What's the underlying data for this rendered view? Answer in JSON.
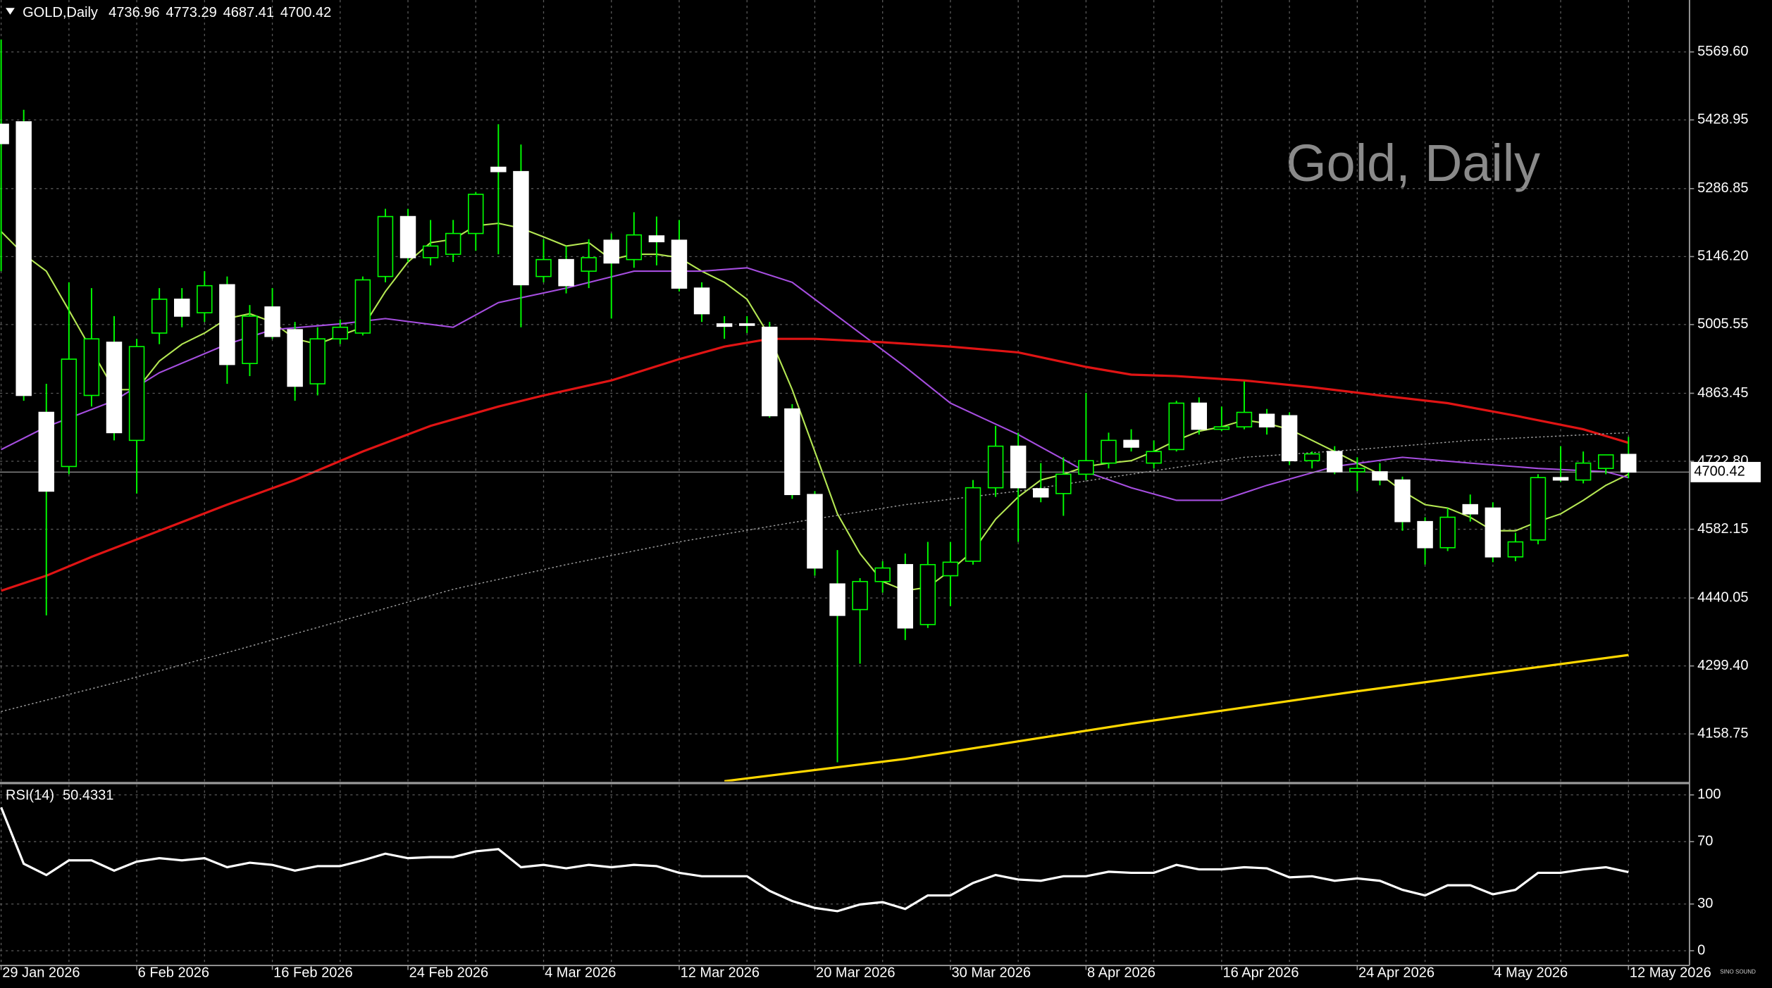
{
  "chart_data": {
    "type": "candlestick",
    "symbol": "GOLD,Daily",
    "watermark": "Gold, Daily",
    "logo": "SINO SOUND",
    "categories": [
      "29 Jan 2026",
      null,
      null,
      null,
      null,
      null,
      "6 Feb 2026",
      null,
      null,
      null,
      null,
      null,
      "16 Feb 2026",
      null,
      null,
      null,
      null,
      null,
      "24 Feb 2026",
      null,
      null,
      null,
      null,
      null,
      "4 Mar 2026",
      null,
      null,
      null,
      null,
      null,
      "12 Mar 2026",
      null,
      null,
      null,
      null,
      null,
      "20 Mar 2026",
      null,
      null,
      null,
      null,
      null,
      "30 Mar 2026",
      null,
      null,
      null,
      null,
      null,
      "8 Apr 2026",
      null,
      null,
      null,
      null,
      null,
      "16 Apr 2026",
      null,
      null,
      null,
      null,
      null,
      "24 Apr 2026",
      null,
      null,
      null,
      null,
      null,
      "4 May 2026",
      null,
      null,
      null,
      null,
      null,
      "12 May 2026"
    ],
    "ohlc": [
      [
        5420,
        5595,
        5116,
        5380
      ],
      [
        5425,
        5450,
        4848,
        4859
      ],
      [
        4824,
        4883,
        4404,
        4661
      ],
      [
        4712,
        5093,
        4696,
        4934
      ],
      [
        4859,
        5081,
        4836,
        4976
      ],
      [
        4969,
        5023,
        4766,
        4782
      ],
      [
        4766,
        4976,
        4656,
        4960
      ],
      [
        4988,
        5081,
        4965,
        5058
      ],
      [
        5058,
        5081,
        5000,
        5023
      ],
      [
        5030,
        5116,
        5011,
        5086
      ],
      [
        5088,
        5105,
        4883,
        4923
      ],
      [
        4925,
        5046,
        4899,
        5023
      ],
      [
        5042,
        5081,
        4976,
        4981
      ],
      [
        4995,
        5011,
        4848,
        4878
      ],
      [
        4883,
        5000,
        4859,
        4976
      ],
      [
        4976,
        5016,
        4965,
        5000
      ],
      [
        4988,
        5105,
        4983,
        5098
      ],
      [
        5105,
        5245,
        5093,
        5229
      ],
      [
        5229,
        5245,
        5135,
        5144
      ],
      [
        5144,
        5222,
        5128,
        5168
      ],
      [
        5151,
        5222,
        5135,
        5194
      ],
      [
        5194,
        5280,
        5158,
        5275
      ],
      [
        5331,
        5420,
        5151,
        5322
      ],
      [
        5322,
        5378,
        5000,
        5088
      ],
      [
        5105,
        5182,
        5093,
        5140
      ],
      [
        5140,
        5168,
        5070,
        5086
      ],
      [
        5116,
        5182,
        5081,
        5144
      ],
      [
        5180,
        5194,
        5018,
        5133
      ],
      [
        5140,
        5238,
        5123,
        5191
      ],
      [
        5189,
        5229,
        5128,
        5177
      ],
      [
        5180,
        5222,
        5074,
        5081
      ],
      [
        5081,
        5093,
        5011,
        5028
      ],
      [
        5007,
        5023,
        4976,
        5002
      ],
      [
        5007,
        5023,
        4988,
        5004
      ],
      [
        5000,
        5011,
        4813,
        4817
      ],
      [
        4831,
        4841,
        4645,
        4654
      ],
      [
        4654,
        4661,
        4486,
        4502
      ],
      [
        4469,
        4539,
        4100,
        4404
      ],
      [
        4416,
        4481,
        4304,
        4474
      ],
      [
        4474,
        4516,
        4451,
        4502
      ],
      [
        4509,
        4532,
        4353,
        4378
      ],
      [
        4385,
        4556,
        4378,
        4509
      ],
      [
        4486,
        4556,
        4423,
        4514
      ],
      [
        4516,
        4684,
        4509,
        4668
      ],
      [
        4668,
        4796,
        4649,
        4754
      ],
      [
        4754,
        4782,
        4556,
        4668
      ],
      [
        4666,
        4719,
        4638,
        4649
      ],
      [
        4656,
        4731,
        4610,
        4696
      ],
      [
        4696,
        4864,
        4684,
        4724
      ],
      [
        4719,
        4782,
        4708,
        4766
      ],
      [
        4766,
        4789,
        4743,
        4752
      ],
      [
        4719,
        4766,
        4708,
        4743
      ],
      [
        4747,
        4848,
        4743,
        4843
      ],
      [
        4843,
        4855,
        4778,
        4789
      ],
      [
        4789,
        4836,
        4785,
        4794
      ],
      [
        4794,
        4888,
        4789,
        4824
      ],
      [
        4820,
        4831,
        4778,
        4794
      ],
      [
        4817,
        4824,
        4715,
        4724
      ],
      [
        4724,
        4743,
        4708,
        4738
      ],
      [
        4743,
        4754,
        4696,
        4701
      ],
      [
        4701,
        4731,
        4661,
        4708
      ],
      [
        4701,
        4719,
        4673,
        4684
      ],
      [
        4684,
        4691,
        4579,
        4598
      ],
      [
        4598,
        4607,
        4509,
        4544
      ],
      [
        4544,
        4626,
        4537,
        4607
      ],
      [
        4633,
        4654,
        4598,
        4614
      ],
      [
        4626,
        4638,
        4514,
        4525
      ],
      [
        4525,
        4575,
        4516,
        4556
      ],
      [
        4560,
        4696,
        4551,
        4689
      ],
      [
        4689,
        4754,
        4680,
        4684
      ],
      [
        4684,
        4743,
        4677,
        4719
      ],
      [
        4708,
        4736,
        4696,
        4736
      ],
      [
        4736.96,
        4773.29,
        4687.41,
        4700.42
      ]
    ],
    "colors": {
      "wick": "#00ff00",
      "bull_body": "#000000",
      "bull_edge": "#00ff00",
      "bear_body": "#ffffff",
      "bear_edge": "#ffffff",
      "bid_line": "#9a9a9a"
    },
    "overlays": [
      {
        "color": "#b5e853",
        "line_style": "solid",
        "values": [
          5198,
          5151,
          5116,
          5035,
          4953,
          4871,
          4871,
          4930,
          4965,
          4988,
          5018,
          5028,
          5011,
          4976,
          4965,
          4983,
          5000,
          5074,
          5135,
          5175,
          5182,
          5210,
          5215,
          5205,
          5187,
          5168,
          5175,
          5140,
          5151,
          5151,
          5144,
          5116,
          5093,
          5058,
          4981,
          4871,
          4743,
          4614,
          4532,
          4474,
          4455,
          4462,
          4497,
          4537,
          4603,
          4649,
          4684,
          4696,
          4712,
          4719,
          4724,
          4743,
          4766,
          4785,
          4794,
          4808,
          4801,
          4789,
          4766,
          4743,
          4719,
          4696,
          4661,
          4633,
          4626,
          4607,
          4579,
          4579,
          4598,
          4614,
          4642,
          4673,
          4696
        ]
      },
      {
        "color": "#a64ee0",
        "line_style": "solid",
        "x": [
          0,
          2,
          5,
          7,
          10,
          12,
          15,
          17,
          20,
          22,
          25,
          28,
          31,
          33,
          35,
          38,
          40,
          42,
          45,
          48,
          50,
          52,
          54,
          56,
          59,
          62,
          65,
          68,
          71,
          72
        ],
        "values": [
          4747,
          4794,
          4848,
          4906,
          4965,
          4995,
          5007,
          5018,
          5000,
          5051,
          5081,
          5116,
          5116,
          5123,
          5093,
          4988,
          4918,
          4843,
          4778,
          4701,
          4668,
          4642,
          4642,
          4673,
          4712,
          4731,
          4719,
          4708,
          4701,
          4689
        ]
      },
      {
        "color": "#e01414",
        "line_style": "thick",
        "x": [
          0,
          2,
          4,
          7,
          10,
          13,
          16,
          19,
          22,
          24,
          27,
          30,
          32,
          34,
          36,
          39,
          42,
          45,
          48,
          50,
          52,
          55,
          58,
          61,
          64,
          67,
          70,
          72
        ],
        "values": [
          4455,
          4486,
          4525,
          4579,
          4633,
          4684,
          4743,
          4796,
          4836,
          4859,
          4890,
          4934,
          4960,
          4976,
          4976,
          4969,
          4960,
          4948,
          4918,
          4902,
          4899,
          4890,
          4876,
          4859,
          4843,
          4817,
          4789,
          4761
        ]
      },
      {
        "color": "#a0a0a0",
        "line_style": "dotted",
        "x": [
          0,
          5,
          10,
          15,
          20,
          25,
          30,
          35,
          40,
          45,
          50,
          55,
          60,
          65,
          72
        ],
        "values": [
          4205,
          4264,
          4327,
          4392,
          4458,
          4509,
          4556,
          4596,
          4633,
          4661,
          4696,
          4731,
          4747,
          4766,
          4782
        ]
      },
      {
        "color": "#ffd700",
        "line_style": "thick",
        "x": [
          32,
          40,
          50,
          60,
          72
        ],
        "values": [
          4061,
          4107,
          4180,
          4247,
          4322
        ]
      }
    ],
    "ylim": [
      4060.6,
      5677.0
    ],
    "yticks": [
      {
        "value": 5569.6,
        "label": "5569.60"
      },
      5428.95,
      5286.85,
      {
        "value": 5146.2,
        "label": "5146.20"
      },
      5005.55,
      4863.45,
      {
        "value": 4722.8,
        "label": "4722.80"
      },
      4582.15,
      4440.05,
      {
        "value": 4299.4,
        "label": "4299.40"
      },
      4158.75
    ],
    "grid": true,
    "rsi": {
      "label": "RSI(14)",
      "color": "#ffffff",
      "values": [
        92.0,
        55.8,
        48.6,
        58.0,
        58.0,
        51.4,
        57.2,
        59.4,
        58.0,
        59.4,
        53.6,
        56.5,
        55.1,
        51.4,
        54.3,
        54.3,
        58.0,
        62.3,
        59.4,
        60.1,
        60.1,
        63.8,
        65.2,
        53.6,
        55.1,
        52.9,
        55.1,
        53.6,
        55.1,
        54.3,
        50.0,
        47.8,
        47.8,
        47.8,
        38.4,
        31.9,
        27.5,
        25.4,
        29.7,
        31.2,
        26.8,
        35.5,
        35.5,
        43.5,
        48.6,
        45.7,
        44.9,
        47.8,
        47.8,
        50.7,
        50.0,
        50.0,
        55.1,
        52.2,
        52.2,
        53.6,
        52.9,
        47.1,
        47.8,
        44.9,
        46.4,
        44.9,
        39.1,
        35.5,
        42.0,
        42.0,
        36.2,
        39.1,
        50.0,
        50.0,
        52.2,
        53.6,
        50.4331
      ],
      "ylim": [
        -9.4,
        106.5
      ],
      "yticks": [
        100,
        70,
        30,
        0
      ]
    }
  }
}
